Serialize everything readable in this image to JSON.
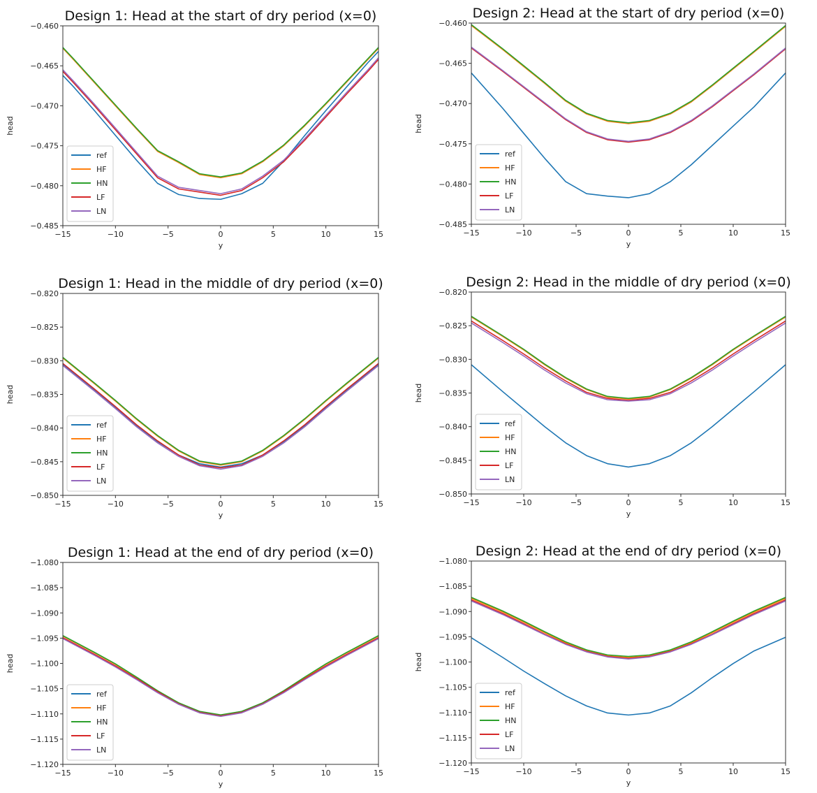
{
  "colors": {
    "ref": "#1f77b4",
    "HF": "#ff7f0e",
    "HN": "#2ca02c",
    "LF": "#d62728",
    "LN": "#9467bd"
  },
  "chart_data": [
    {
      "type": "line",
      "title": "Design 1: Head at the start of dry period (x=0)",
      "xlabel": "y",
      "ylabel": "head",
      "xlim": [
        -15,
        15
      ],
      "ylim": [
        -0.485,
        -0.46
      ],
      "xticks": [
        -15,
        -10,
        -5,
        0,
        5,
        10,
        15
      ],
      "xtick_labels": [
        "−15",
        "−10",
        "−5",
        "0",
        "5",
        "10",
        "15"
      ],
      "yticks": [
        -0.46,
        -0.465,
        -0.47,
        -0.475,
        -0.48,
        -0.485
      ],
      "ytick_labels": [
        "−0.460",
        "−0.465",
        "−0.470",
        "−0.475",
        "−0.480",
        "−0.485"
      ],
      "legend": "lower-left",
      "grid": false,
      "x": [
        -15,
        -14,
        -12,
        -10,
        -8,
        -6,
        -4,
        -2,
        0,
        2,
        4,
        6,
        8,
        10,
        12,
        14,
        15
      ],
      "series": [
        {
          "name": "ref",
          "values": [
            -0.4662,
            -0.4676,
            -0.4706,
            -0.4737,
            -0.4768,
            -0.4797,
            -0.4811,
            -0.4816,
            -0.4817,
            -0.481,
            -0.4797,
            -0.4769,
            -0.4737,
            -0.4706,
            -0.4676,
            -0.4646,
            -0.4632
          ]
        },
        {
          "name": "HF",
          "values": [
            -0.4628,
            -0.4642,
            -0.4671,
            -0.47,
            -0.4729,
            -0.4757,
            -0.4771,
            -0.4786,
            -0.479,
            -0.4785,
            -0.477,
            -0.475,
            -0.4725,
            -0.4698,
            -0.467,
            -0.4642,
            -0.4628
          ]
        },
        {
          "name": "HN",
          "values": [
            -0.4627,
            -0.4641,
            -0.467,
            -0.4699,
            -0.4728,
            -0.4756,
            -0.477,
            -0.4785,
            -0.4789,
            -0.4784,
            -0.4769,
            -0.4749,
            -0.4724,
            -0.4697,
            -0.4669,
            -0.4641,
            -0.4627
          ]
        },
        {
          "name": "LF",
          "values": [
            -0.4657,
            -0.4671,
            -0.47,
            -0.473,
            -0.476,
            -0.479,
            -0.4804,
            -0.4808,
            -0.4812,
            -0.4806,
            -0.479,
            -0.477,
            -0.4743,
            -0.4714,
            -0.4685,
            -0.4657,
            -0.4642
          ]
        },
        {
          "name": "LN",
          "values": [
            -0.4655,
            -0.4669,
            -0.4698,
            -0.4728,
            -0.4758,
            -0.4788,
            -0.4802,
            -0.4806,
            -0.481,
            -0.4804,
            -0.4788,
            -0.4768,
            -0.4741,
            -0.4712,
            -0.4683,
            -0.4655,
            -0.464
          ]
        }
      ]
    },
    {
      "type": "line",
      "title": "Design 2: Head at the start of dry period (x=0)",
      "xlabel": "y",
      "ylabel": "head",
      "xlim": [
        -15,
        15
      ],
      "ylim": [
        -0.485,
        -0.46
      ],
      "xticks": [
        -15,
        -10,
        -5,
        0,
        5,
        10,
        15
      ],
      "xtick_labels": [
        "−15",
        "−10",
        "−5",
        "0",
        "5",
        "10",
        "15"
      ],
      "yticks": [
        -0.46,
        -0.465,
        -0.47,
        -0.475,
        -0.48,
        -0.485
      ],
      "ytick_labels": [
        "−0.460",
        "−0.465",
        "−0.470",
        "−0.475",
        "−0.480",
        "−0.485"
      ],
      "legend": "lower-left",
      "grid": false,
      "x": [
        -15,
        -12,
        -10,
        -8,
        -6,
        -4,
        -2,
        0,
        2,
        4,
        6,
        8,
        10,
        12,
        15
      ],
      "series": [
        {
          "name": "ref",
          "values": [
            -0.4662,
            -0.4706,
            -0.4737,
            -0.4768,
            -0.4797,
            -0.4812,
            -0.4815,
            -0.4817,
            -0.4812,
            -0.4797,
            -0.4776,
            -0.4752,
            -0.4728,
            -0.4704,
            -0.4662
          ]
        },
        {
          "name": "HF",
          "values": [
            -0.4603,
            -0.4633,
            -0.4654,
            -0.4675,
            -0.4697,
            -0.4713,
            -0.4722,
            -0.4725,
            -0.4722,
            -0.4713,
            -0.4698,
            -0.4678,
            -0.4657,
            -0.4636,
            -0.4604
          ]
        },
        {
          "name": "HN",
          "values": [
            -0.4602,
            -0.4632,
            -0.4653,
            -0.4674,
            -0.4696,
            -0.4712,
            -0.4721,
            -0.4724,
            -0.4721,
            -0.4712,
            -0.4697,
            -0.4677,
            -0.4656,
            -0.4635,
            -0.4603
          ]
        },
        {
          "name": "LF",
          "values": [
            -0.4631,
            -0.466,
            -0.468,
            -0.47,
            -0.472,
            -0.4736,
            -0.4745,
            -0.4748,
            -0.4745,
            -0.4736,
            -0.4722,
            -0.4704,
            -0.4684,
            -0.4664,
            -0.4632
          ]
        },
        {
          "name": "LN",
          "values": [
            -0.463,
            -0.4659,
            -0.4679,
            -0.4699,
            -0.4719,
            -0.4735,
            -0.4744,
            -0.4747,
            -0.4744,
            -0.4735,
            -0.4721,
            -0.4703,
            -0.4683,
            -0.4663,
            -0.4631
          ]
        }
      ]
    },
    {
      "type": "line",
      "title": "Design 1: Head in the middle of dry period (x=0)",
      "xlabel": "y",
      "ylabel": "head",
      "xlim": [
        -15,
        15
      ],
      "ylim": [
        -0.85,
        -0.82
      ],
      "xticks": [
        -15,
        -10,
        -5,
        0,
        5,
        10,
        15
      ],
      "xtick_labels": [
        "−15",
        "−10",
        "−5",
        "0",
        "5",
        "10",
        "15"
      ],
      "yticks": [
        -0.82,
        -0.825,
        -0.83,
        -0.835,
        -0.84,
        -0.845,
        -0.85
      ],
      "ytick_labels": [
        "−0.820",
        "−0.825",
        "−0.830",
        "−0.835",
        "−0.840",
        "−0.845",
        "−0.850"
      ],
      "legend": "lower-left",
      "grid": false,
      "x": [
        -15,
        -12,
        -10,
        -8,
        -6,
        -4,
        -2,
        0,
        2,
        4,
        6,
        8,
        10,
        12,
        15
      ],
      "series": [
        {
          "name": "ref",
          "values": [
            -0.8305,
            -0.8343,
            -0.8369,
            -0.8396,
            -0.842,
            -0.844,
            -0.8453,
            -0.8458,
            -0.8453,
            -0.844,
            -0.842,
            -0.8396,
            -0.8369,
            -0.8343,
            -0.8305
          ]
        },
        {
          "name": "HF",
          "values": [
            -0.8296,
            -0.8334,
            -0.836,
            -0.8387,
            -0.8412,
            -0.8434,
            -0.845,
            -0.8455,
            -0.845,
            -0.8434,
            -0.8412,
            -0.8387,
            -0.836,
            -0.8334,
            -0.8296
          ]
        },
        {
          "name": "HN",
          "values": [
            -0.8295,
            -0.8333,
            -0.8359,
            -0.8386,
            -0.8411,
            -0.8433,
            -0.8449,
            -0.8454,
            -0.8449,
            -0.8433,
            -0.8411,
            -0.8386,
            -0.8359,
            -0.8333,
            -0.8295
          ]
        },
        {
          "name": "LF",
          "values": [
            -0.8304,
            -0.8342,
            -0.8368,
            -0.8395,
            -0.8419,
            -0.844,
            -0.8455,
            -0.8459,
            -0.8455,
            -0.844,
            -0.8419,
            -0.8395,
            -0.8368,
            -0.8342,
            -0.8304
          ]
        },
        {
          "name": "LN",
          "values": [
            -0.8307,
            -0.8345,
            -0.8371,
            -0.8398,
            -0.8422,
            -0.8442,
            -0.8456,
            -0.8461,
            -0.8456,
            -0.8442,
            -0.8422,
            -0.8398,
            -0.8371,
            -0.8345,
            -0.8307
          ]
        }
      ]
    },
    {
      "type": "line",
      "title": "Design 2: Head in the middle of dry period (x=0)",
      "xlabel": "y",
      "ylabel": "head",
      "xlim": [
        -15,
        15
      ],
      "ylim": [
        -0.85,
        -0.82
      ],
      "xticks": [
        -15,
        -10,
        -5,
        0,
        5,
        10,
        15
      ],
      "xtick_labels": [
        "−15",
        "−10",
        "−5",
        "0",
        "5",
        "10",
        "15"
      ],
      "yticks": [
        -0.82,
        -0.825,
        -0.83,
        -0.835,
        -0.84,
        -0.845,
        -0.85
      ],
      "ytick_labels": [
        "−0.820",
        "−0.825",
        "−0.830",
        "−0.835",
        "−0.840",
        "−0.845",
        "−0.850"
      ],
      "legend": "lower-left",
      "grid": false,
      "x": [
        -15,
        -12,
        -10,
        -8,
        -6,
        -4,
        -2,
        0,
        2,
        4,
        6,
        8,
        10,
        12,
        15
      ],
      "series": [
        {
          "name": "ref",
          "values": [
            -0.8308,
            -0.8348,
            -0.8374,
            -0.84,
            -0.8424,
            -0.8443,
            -0.8455,
            -0.846,
            -0.8455,
            -0.8443,
            -0.8424,
            -0.84,
            -0.8374,
            -0.8348,
            -0.8308
          ]
        },
        {
          "name": "HF",
          "values": [
            -0.8237,
            -0.8266,
            -0.8286,
            -0.8308,
            -0.8328,
            -0.8345,
            -0.8356,
            -0.8359,
            -0.8356,
            -0.8345,
            -0.8328,
            -0.8308,
            -0.8286,
            -0.8266,
            -0.8237
          ]
        },
        {
          "name": "HN",
          "values": [
            -0.8236,
            -0.8265,
            -0.8285,
            -0.8307,
            -0.8327,
            -0.8344,
            -0.8355,
            -0.8358,
            -0.8355,
            -0.8344,
            -0.8327,
            -0.8307,
            -0.8285,
            -0.8265,
            -0.8236
          ]
        },
        {
          "name": "LF",
          "values": [
            -0.8243,
            -0.8272,
            -0.8292,
            -0.8313,
            -0.8332,
            -0.8349,
            -0.8358,
            -0.8361,
            -0.8358,
            -0.8349,
            -0.8332,
            -0.8313,
            -0.8292,
            -0.8272,
            -0.8243
          ]
        },
        {
          "name": "LN",
          "values": [
            -0.8246,
            -0.8275,
            -0.8295,
            -0.8316,
            -0.8335,
            -0.8351,
            -0.836,
            -0.8362,
            -0.836,
            -0.8351,
            -0.8335,
            -0.8316,
            -0.8295,
            -0.8275,
            -0.8246
          ]
        }
      ]
    },
    {
      "type": "line",
      "title": "Design 1: Head at the end of dry period (x=0)",
      "xlabel": "y",
      "ylabel": "head",
      "xlim": [
        -15,
        15
      ],
      "ylim": [
        -1.12,
        -1.08
      ],
      "xticks": [
        -15,
        -10,
        -5,
        0,
        5,
        10,
        15
      ],
      "xtick_labels": [
        "−15",
        "−10",
        "−5",
        "0",
        "5",
        "10",
        "15"
      ],
      "yticks": [
        -1.08,
        -1.085,
        -1.09,
        -1.095,
        -1.1,
        -1.105,
        -1.11,
        -1.115,
        -1.12
      ],
      "ytick_labels": [
        "−1.080",
        "−1.085",
        "−1.090",
        "−1.095",
        "−1.100",
        "−1.105",
        "−1.110",
        "−1.115",
        "−1.120"
      ],
      "legend": "lower-left",
      "grid": false,
      "x": [
        -15,
        -12,
        -10,
        -8,
        -6,
        -4,
        -2,
        0,
        2,
        4,
        6,
        8,
        10,
        12,
        15
      ],
      "series": [
        {
          "name": "ref",
          "values": [
            -1.095,
            -1.0983,
            -1.1006,
            -1.1031,
            -1.1057,
            -1.108,
            -1.1097,
            -1.1104,
            -1.1097,
            -1.108,
            -1.1057,
            -1.1031,
            -1.1006,
            -1.0983,
            -1.095
          ]
        },
        {
          "name": "HF",
          "values": [
            -1.0946,
            -1.0979,
            -1.1002,
            -1.1028,
            -1.1055,
            -1.1079,
            -1.1096,
            -1.1103,
            -1.1096,
            -1.1079,
            -1.1055,
            -1.1028,
            -1.1002,
            -1.0979,
            -1.0946
          ]
        },
        {
          "name": "HN",
          "values": [
            -1.0945,
            -1.0978,
            -1.1001,
            -1.1027,
            -1.1054,
            -1.1078,
            -1.1095,
            -1.1102,
            -1.1095,
            -1.1078,
            -1.1054,
            -1.1027,
            -1.1001,
            -1.0978,
            -1.0945
          ]
        },
        {
          "name": "LF",
          "values": [
            -1.0949,
            -1.0982,
            -1.1005,
            -1.103,
            -1.1056,
            -1.108,
            -1.1097,
            -1.1104,
            -1.1097,
            -1.108,
            -1.1056,
            -1.103,
            -1.1005,
            -1.0982,
            -1.0949
          ]
        },
        {
          "name": "LN",
          "values": [
            -1.0951,
            -1.0984,
            -1.1007,
            -1.1032,
            -1.1058,
            -1.1081,
            -1.1098,
            -1.1105,
            -1.1098,
            -1.1081,
            -1.1058,
            -1.1032,
            -1.1007,
            -1.0984,
            -1.0951
          ]
        }
      ]
    },
    {
      "type": "line",
      "title": "Design 2: Head at the end of dry period (x=0)",
      "xlabel": "y",
      "ylabel": "head",
      "xlim": [
        -15,
        15
      ],
      "ylim": [
        -1.12,
        -1.08
      ],
      "xticks": [
        -15,
        -10,
        -5,
        0,
        5,
        10,
        15
      ],
      "xtick_labels": [
        "−15",
        "−10",
        "−5",
        "0",
        "5",
        "10",
        "15"
      ],
      "yticks": [
        -1.08,
        -1.085,
        -1.09,
        -1.095,
        -1.1,
        -1.105,
        -1.11,
        -1.115,
        -1.12
      ],
      "ytick_labels": [
        "−1.080",
        "−1.085",
        "−1.090",
        "−1.095",
        "−1.100",
        "−1.105",
        "−1.110",
        "−1.115",
        "−1.120"
      ],
      "legend": "lower-left",
      "grid": false,
      "x": [
        -15,
        -12,
        -10,
        -8,
        -6,
        -4,
        -2,
        0,
        2,
        4,
        6,
        8,
        10,
        12,
        15
      ],
      "series": [
        {
          "name": "ref",
          "values": [
            -1.0952,
            -1.0991,
            -1.1018,
            -1.1043,
            -1.1067,
            -1.1087,
            -1.1101,
            -1.1105,
            -1.1101,
            -1.1087,
            -1.1061,
            -1.1031,
            -1.1003,
            -1.0978,
            -1.0951
          ]
        },
        {
          "name": "HF",
          "values": [
            -1.0874,
            -1.0901,
            -1.0921,
            -1.0942,
            -1.0962,
            -1.0978,
            -1.0988,
            -1.0991,
            -1.0988,
            -1.0978,
            -1.0962,
            -1.0942,
            -1.0921,
            -1.0901,
            -1.0874
          ]
        },
        {
          "name": "HN",
          "values": [
            -1.0872,
            -1.0899,
            -1.0919,
            -1.094,
            -1.096,
            -1.0976,
            -1.0986,
            -1.0989,
            -1.0986,
            -1.0976,
            -1.096,
            -1.094,
            -1.0919,
            -1.0899,
            -1.0872
          ]
        },
        {
          "name": "LF",
          "values": [
            -1.0877,
            -1.0904,
            -1.0924,
            -1.0945,
            -1.0964,
            -1.0979,
            -1.0989,
            -1.0993,
            -1.0989,
            -1.0979,
            -1.0964,
            -1.0945,
            -1.0924,
            -1.0904,
            -1.0877
          ]
        },
        {
          "name": "LN",
          "values": [
            -1.0879,
            -1.0906,
            -1.0926,
            -1.0946,
            -1.0965,
            -1.098,
            -1.099,
            -1.0994,
            -1.099,
            -1.098,
            -1.0965,
            -1.0946,
            -1.0926,
            -1.0906,
            -1.0879
          ]
        }
      ]
    }
  ]
}
